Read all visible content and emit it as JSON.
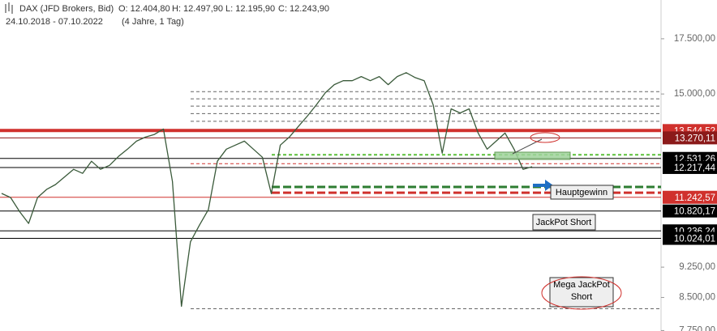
{
  "chart_data": {
    "type": "line",
    "title": "DAX (JFD Brokers, Bid)",
    "ohlc": [
      "O: 12.404,80",
      "H: 12.497,90",
      "L: 12.195,90",
      "C: 12.243,90"
    ],
    "date_range": "24.10.2018 - 07.10.2022",
    "period": "(4 Jahre, 1 Tag)",
    "log_scale": true,
    "ylim": [
      7740,
      19500
    ],
    "yticks": [
      {
        "value": 17500,
        "label": "17.500,00"
      },
      {
        "value": 15000,
        "label": "15.000,00"
      },
      {
        "value": 9250,
        "label": "9.250,00"
      },
      {
        "value": 8500,
        "label": "8.500,00"
      },
      {
        "value": 7750,
        "label": "7.750,00"
      }
    ],
    "levels": [
      {
        "value": 13544.52,
        "label": "13.544,52",
        "color": "#d0312d",
        "width": 4
      },
      {
        "value": 13270.11,
        "label": "13.270,11",
        "color": "#8b1a1a",
        "width": 1
      },
      {
        "value": 12531.26,
        "label": "12.531,26",
        "color": "#000000",
        "width": 1
      },
      {
        "value": 12217.44,
        "label": "12.217,44",
        "color": "#000000",
        "width": 1
      },
      {
        "value": 11242.57,
        "label": "11.242,57",
        "color": "#d0312d",
        "width": 1
      },
      {
        "value": 10820.17,
        "label": "10.820,17",
        "color": "#000000",
        "width": 1
      },
      {
        "value": 10236.24,
        "label": "10.236,24",
        "color": "#000000",
        "width": 1
      },
      {
        "value": 10024.01,
        "label": "10.024,01",
        "color": "#000000",
        "width": 1
      }
    ],
    "dashed_levels": [
      {
        "value": 15100,
        "color": "#666666",
        "width": 1
      },
      {
        "value": 14800,
        "color": "#666666",
        "width": 1
      },
      {
        "value": 14500,
        "color": "#666666",
        "width": 1
      },
      {
        "value": 14200,
        "color": "#666666",
        "width": 1
      },
      {
        "value": 13900,
        "color": "#666666",
        "width": 1
      },
      {
        "value": 12658,
        "color": "#5bbf3a",
        "width": 2
      },
      {
        "value": 12348,
        "color": "#d0312d",
        "width": 1
      },
      {
        "value": 11570,
        "color": "#2e7d32",
        "width": 3
      },
      {
        "value": 11387,
        "color": "#d0312d",
        "width": 3
      },
      {
        "value": 8237,
        "color": "#666666",
        "width": 1
      }
    ],
    "series": [
      {
        "name": "DAX",
        "color": "#3a5a3a",
        "values": [
          11363,
          11235,
          10800,
          10450,
          11235,
          11490,
          11650,
          11900,
          12156,
          12019,
          12432,
          12156,
          12292,
          12600,
          12859,
          13151,
          13300,
          13400,
          13603,
          11751,
          8293,
          9928,
          10400,
          10862,
          12432,
          12859,
          13004,
          13151,
          12859,
          12572,
          11360,
          13004,
          13300,
          13700,
          14100,
          14551,
          15052,
          15395,
          15568,
          15568,
          15746,
          15568,
          15746,
          15395,
          15746,
          15921,
          15700,
          15568,
          14551,
          12715,
          14390,
          14227,
          14390,
          13451,
          12859,
          13151,
          13451,
          12859,
          12156,
          12243.9
        ]
      }
    ],
    "annotations": [
      "Hauptgewinn",
      "JackPot Short",
      "Mega JackPot Short"
    ]
  }
}
